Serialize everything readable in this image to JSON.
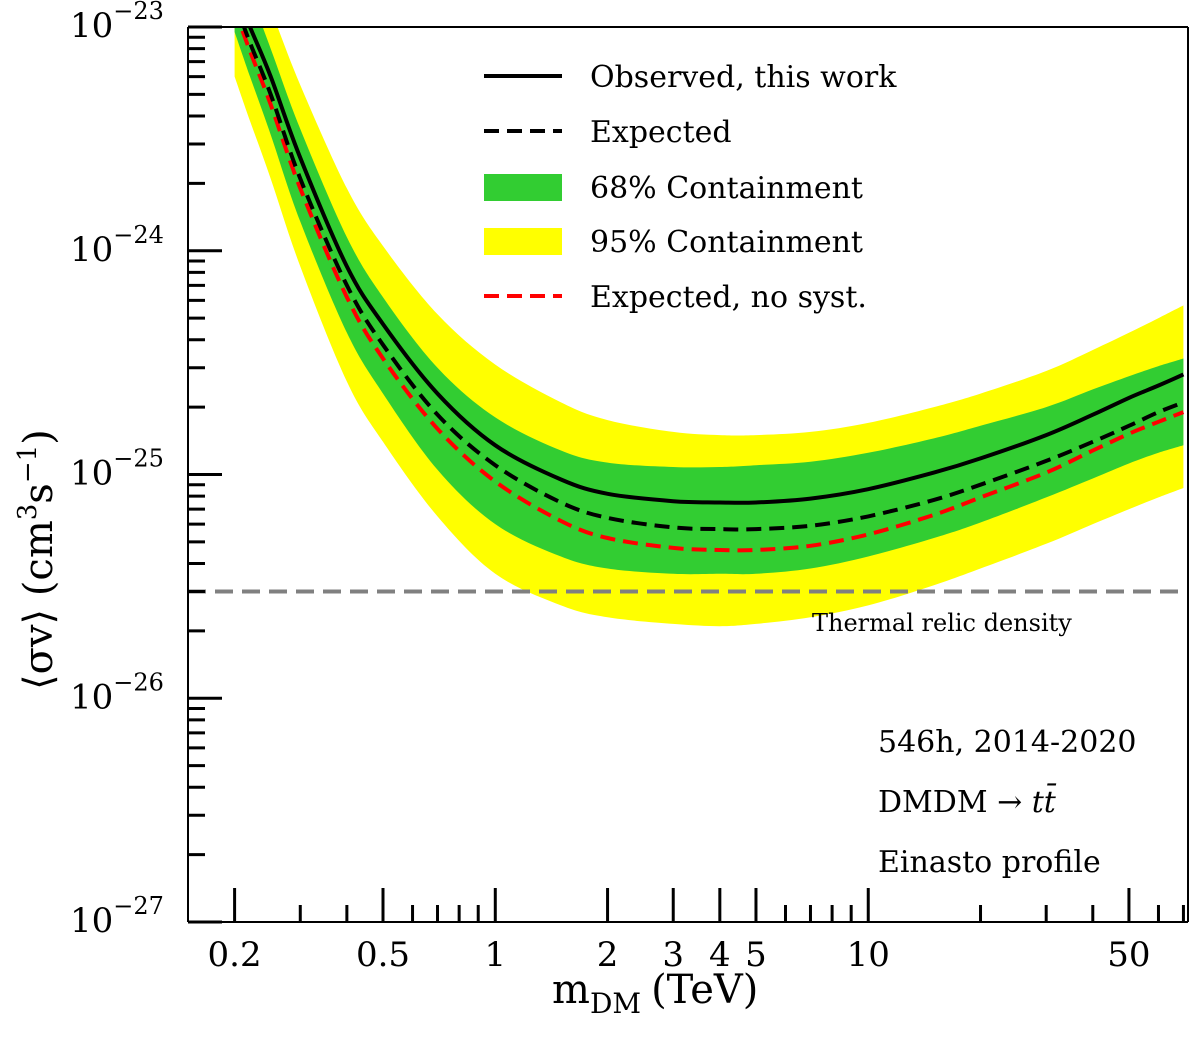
{
  "chart_data": {
    "type": "line",
    "title": "",
    "xlabel": "m_DM (TeV)",
    "xlabel_main": "m",
    "xlabel_sub": "DM",
    "xlabel_unit": "(TeV)",
    "ylabel": "⟨σv⟩ (cm^3 s^-1)",
    "ylabel_main": "⟨σv⟩ (cm",
    "ylabel_sup1": "3",
    "ylabel_mid": "s",
    "ylabel_sup2": "−1",
    "ylabel_end": ")",
    "xscale": "log",
    "yscale": "log",
    "xlim": [
      0.15,
      72
    ],
    "ylim": [
      1e-27,
      1e-23
    ],
    "grid": false,
    "x_ticks": [
      {
        "value": 0.2,
        "label": "0.2"
      },
      {
        "value": 0.5,
        "label": "0.5"
      },
      {
        "value": 1,
        "label": "1"
      },
      {
        "value": 2,
        "label": "2"
      },
      {
        "value": 3,
        "label": "3"
      },
      {
        "value": 4,
        "label": "4"
      },
      {
        "value": 5,
        "label": "5"
      },
      {
        "value": 10,
        "label": "10"
      },
      {
        "value": 50,
        "label": "50"
      }
    ],
    "x_minor_ticks": [
      0.3,
      0.4,
      0.6,
      0.7,
      0.8,
      0.9,
      6,
      7,
      8,
      9,
      20,
      30,
      40,
      60,
      70
    ],
    "y_ticks": [
      {
        "value": 1e-23,
        "base": "10",
        "exp": "−23"
      },
      {
        "value": 1e-24,
        "base": "10",
        "exp": "−24"
      },
      {
        "value": 1e-25,
        "base": "10",
        "exp": "−25"
      },
      {
        "value": 1e-26,
        "base": "10",
        "exp": "−26"
      },
      {
        "value": 1e-27,
        "base": "10",
        "exp": "−27"
      }
    ],
    "x": [
      0.2,
      0.22,
      0.25,
      0.3,
      0.4,
      0.5,
      0.7,
      1.0,
      1.5,
      2.0,
      3.0,
      4.0,
      5.0,
      7.0,
      10,
      15,
      20,
      30,
      40,
      50,
      60,
      70
    ],
    "series": [
      {
        "name": "Observed, this work",
        "style": "solid",
        "color": "#000000",
        "values": [
          1.5e-23,
          1e-23,
          6e-24,
          2.6e-24,
          8.5e-25,
          4.7e-25,
          2.3e-25,
          1.35e-25,
          9.5e-26,
          8.2e-26,
          7.6e-26,
          7.5e-26,
          7.5e-26,
          7.8e-26,
          8.6e-26,
          1.02e-25,
          1.18e-25,
          1.5e-25,
          1.85e-25,
          2.2e-25,
          2.5e-25,
          2.8e-25
        ]
      },
      {
        "name": "Expected",
        "style": "dashed",
        "color": "#000000",
        "values": [
          1.3e-23,
          8.5e-24,
          5e-24,
          2.1e-24,
          7e-25,
          3.8e-25,
          1.85e-25,
          1.1e-25,
          7.5e-26,
          6.4e-26,
          5.8e-26,
          5.7e-26,
          5.7e-26,
          5.9e-26,
          6.5e-26,
          7.7e-26,
          9e-26,
          1.15e-25,
          1.4e-25,
          1.65e-25,
          1.9e-25,
          2.1e-25
        ]
      },
      {
        "name": "Expected, no syst.",
        "style": "dashed",
        "color": "#ff0000",
        "values": [
          1.2e-23,
          7.8e-24,
          4.5e-24,
          1.9e-24,
          6.2e-25,
          3.3e-25,
          1.6e-25,
          9.3e-26,
          6.2e-26,
          5.2e-26,
          4.7e-26,
          4.6e-26,
          4.6e-26,
          4.8e-26,
          5.4e-26,
          6.6e-26,
          7.9e-26,
          1.02e-25,
          1.28e-25,
          1.52e-25,
          1.72e-25,
          1.9e-25
        ]
      }
    ],
    "bands": [
      {
        "name": "95% Containment",
        "color": "#ffff00",
        "upper": [
          3e-23,
          2e-23,
          1.2e-23,
          5.5e-24,
          1.9e-24,
          1.05e-24,
          5.2e-25,
          3.1e-25,
          2.1e-25,
          1.75e-25,
          1.55e-25,
          1.5e-25,
          1.5e-25,
          1.55e-25,
          1.7e-25,
          2e-25,
          2.3e-25,
          2.9e-25,
          3.6e-25,
          4.3e-25,
          5e-25,
          5.7e-25
        ],
        "lower": [
          6e-24,
          3.8e-24,
          2.1e-24,
          8.5e-25,
          2.6e-25,
          1.4e-25,
          6.5e-26,
          3.6e-26,
          2.6e-26,
          2.3e-26,
          2.15e-26,
          2.1e-26,
          2.15e-26,
          2.3e-26,
          2.6e-26,
          3.2e-26,
          3.8e-26,
          4.9e-26,
          6e-26,
          7e-26,
          7.9e-26,
          8.7e-26
        ]
      },
      {
        "name": "68% Containment",
        "color": "#32cd32",
        "upper": [
          2e-23,
          1.4e-23,
          8e-24,
          3.5e-24,
          1.15e-24,
          6.2e-25,
          3e-25,
          1.8e-25,
          1.28e-25,
          1.13e-25,
          1.08e-25,
          1.08e-25,
          1.1e-25,
          1.14e-25,
          1.25e-25,
          1.45e-25,
          1.65e-25,
          2e-25,
          2.4e-25,
          2.75e-25,
          3.05e-25,
          3.3e-25
        ],
        "lower": [
          9.5e-24,
          6e-24,
          3.3e-24,
          1.35e-24,
          4.3e-25,
          2.3e-25,
          1.05e-25,
          6e-26,
          4.3e-26,
          3.8e-26,
          3.6e-26,
          3.6e-26,
          3.6e-26,
          3.8e-26,
          4.3e-26,
          5.2e-26,
          6.1e-26,
          7.9e-26,
          9.6e-26,
          1.12e-25,
          1.25e-25,
          1.35e-25
        ]
      }
    ],
    "reference_lines": [
      {
        "name": "Thermal relic density",
        "value": 3e-26,
        "style": "dashed",
        "color": "#808080",
        "label": "Thermal relic density"
      }
    ],
    "legend": {
      "position": "top-center",
      "entries": [
        {
          "label": "Observed, this work",
          "kind": "solid-line",
          "color": "#000000"
        },
        {
          "label": "Expected",
          "kind": "dashed-line",
          "color": "#000000"
        },
        {
          "label": "68% Containment",
          "kind": "patch",
          "color": "#32cd32"
        },
        {
          "label": "95% Containment",
          "kind": "patch",
          "color": "#ffff00"
        },
        {
          "label": "Expected, no syst.",
          "kind": "dashed-line",
          "color": "#ff0000"
        }
      ]
    },
    "annotations": {
      "position": "bottom-right",
      "lines": [
        {
          "text": "546h, 2014-2020"
        },
        {
          "text": "DMDM → ",
          "italic_suffix": "tt̄"
        },
        {
          "text": "Einasto profile"
        }
      ]
    }
  }
}
